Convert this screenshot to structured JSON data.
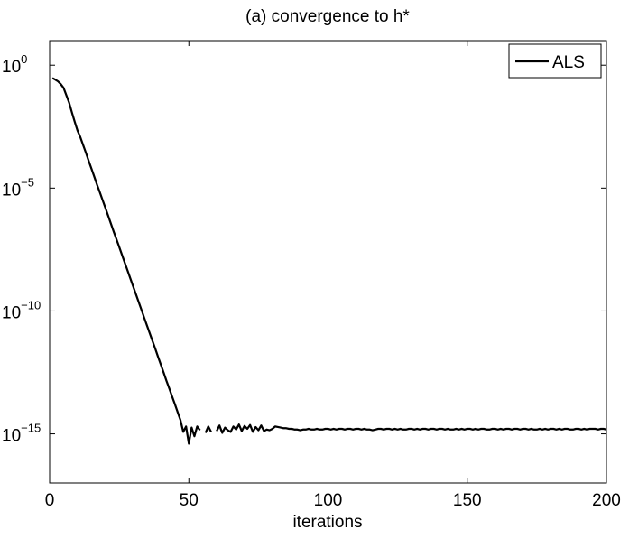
{
  "chart_data": {
    "type": "line",
    "title": "(a) convergence to h*",
    "x_label": "iterations",
    "x": [
      1,
      2,
      3,
      4,
      5,
      6,
      7,
      8,
      9,
      10,
      11,
      12,
      13,
      14,
      15,
      16,
      17,
      18,
      19,
      20,
      21,
      22,
      23,
      24,
      25,
      26,
      27,
      28,
      29,
      30,
      31,
      32,
      33,
      34,
      35,
      36,
      37,
      38,
      39,
      40,
      41,
      42,
      43,
      44,
      45,
      46,
      47,
      48,
      49,
      50,
      51,
      52,
      53,
      54,
      55,
      56,
      57,
      58,
      59,
      60,
      61,
      62,
      63,
      64,
      65,
      66,
      67,
      68,
      69,
      70,
      71,
      72,
      73,
      74,
      75,
      76,
      77,
      78,
      79,
      80,
      81,
      82,
      83,
      84,
      85,
      86,
      87,
      88,
      89,
      90,
      91,
      92,
      93,
      94,
      95,
      96,
      97,
      98,
      99,
      100,
      101,
      102,
      103,
      104,
      105,
      106,
      107,
      108,
      109,
      110,
      111,
      112,
      113,
      114,
      115,
      116,
      117,
      118,
      119,
      120,
      121,
      122,
      123,
      124,
      125,
      126,
      127,
      128,
      129,
      130,
      131,
      132,
      133,
      134,
      135,
      136,
      137,
      138,
      139,
      140,
      141,
      142,
      143,
      144,
      145,
      146,
      147,
      148,
      149,
      150,
      151,
      152,
      153,
      154,
      155,
      156,
      157,
      158,
      159,
      160,
      161,
      162,
      163,
      164,
      165,
      166,
      167,
      168,
      169,
      170,
      171,
      172,
      173,
      174,
      175,
      176,
      177,
      178,
      179,
      180,
      181,
      182,
      183,
      184,
      185,
      186,
      187,
      188,
      189,
      190,
      191,
      192,
      193,
      194,
      195,
      196,
      197,
      198,
      199,
      200
    ],
    "series": [
      {
        "name": "ALS",
        "color": "#000000",
        "values": [
          0.3,
          0.26,
          0.22,
          0.17,
          0.12,
          0.06,
          0.03,
          0.012,
          0.005,
          0.0022,
          0.0012,
          0.00058,
          0.00028,
          0.00013,
          6.3e-05,
          3e-05,
          1.4e-05,
          6.9e-06,
          3.3e-06,
          1.6e-06,
          7.6e-07,
          3.6e-07,
          1.7e-07,
          8.3e-08,
          4e-08,
          1.9e-08,
          9.1e-09,
          4.4e-09,
          2.1e-09,
          1e-09,
          4.8e-10,
          2.3e-10,
          1.1e-10,
          5.2e-11,
          2.5e-11,
          1.2e-11,
          5.8e-12,
          2.8e-12,
          1.3e-12,
          6.3e-13,
          3e-13,
          1.4e-13,
          6.9e-14,
          3.3e-14,
          1.6e-14,
          7.6e-15,
          3.6e-15,
          1.2e-15,
          2e-15,
          4e-16,
          1.8e-15,
          8e-16,
          2e-15,
          1.4e-15,
          null,
          1.1e-15,
          2e-15,
          1.2e-15,
          null,
          1.3e-15,
          2.2e-15,
          1.1e-15,
          1.8e-15,
          1.4e-15,
          1.2e-15,
          2e-15,
          1.5e-15,
          2.4e-15,
          1.3e-15,
          2.1e-15,
          1.6e-15,
          2.3e-15,
          1.2e-15,
          1.9e-15,
          1.4e-15,
          2.2e-15,
          1.3e-15,
          1.5e-15,
          1.4e-15,
          1.6e-15,
          2e-15,
          1.9e-15,
          1.8e-15,
          1.7e-15,
          1.7e-15,
          1.6e-15,
          1.6e-15,
          1.5e-15,
          1.5e-15,
          1.4e-15,
          1.5e-15,
          1.5e-15,
          1.6e-15,
          1.5e-15,
          1.5e-15,
          1.6e-15,
          1.5e-15,
          1.5e-15,
          1.6e-15,
          1.6e-15,
          1.5e-15,
          1.6e-15,
          1.5e-15,
          1.6e-15,
          1.6e-15,
          1.5e-15,
          1.6e-15,
          1.6e-15,
          1.5e-15,
          1.6e-15,
          1.6e-15,
          1.5e-15,
          1.6e-15,
          1.5e-15,
          1.5e-15,
          1.4e-15,
          1.5e-15,
          1.6e-15,
          1.6e-15,
          1.5e-15,
          1.6e-15,
          1.6e-15,
          1.5e-15,
          1.6e-15,
          1.5e-15,
          1.6e-15,
          1.5e-15,
          1.5e-15,
          1.6e-15,
          1.6e-15,
          1.5e-15,
          1.6e-15,
          1.5e-15,
          1.6e-15,
          1.6e-15,
          1.5e-15,
          1.6e-15,
          1.6e-15,
          1.5e-15,
          1.6e-15,
          1.6e-15,
          1.5e-15,
          1.6e-15,
          1.5e-15,
          1.5e-15,
          1.6e-15,
          1.5e-15,
          1.6e-15,
          1.5e-15,
          1.6e-15,
          1.6e-15,
          1.5e-15,
          1.6e-15,
          1.5e-15,
          1.6e-15,
          1.6e-15,
          1.5e-15,
          1.5e-15,
          1.6e-15,
          1.6e-15,
          1.5e-15,
          1.6e-15,
          1.5e-15,
          1.6e-15,
          1.6e-15,
          1.5e-15,
          1.6e-15,
          1.6e-15,
          1.5e-15,
          1.6e-15,
          1.6e-15,
          1.5e-15,
          1.6e-15,
          1.5e-15,
          1.5e-15,
          1.6e-15,
          1.5e-15,
          1.6e-15,
          1.5e-15,
          1.6e-15,
          1.6e-15,
          1.5e-15,
          1.6e-15,
          1.5e-15,
          1.6e-15,
          1.6e-15,
          1.5e-15,
          1.5e-15,
          1.6e-15,
          1.6e-15,
          1.5e-15,
          1.6e-15,
          1.5e-15,
          1.6e-15,
          1.6e-15,
          1.6e-15,
          1.5e-15,
          1.6e-15,
          1.6e-15,
          1.5e-15
        ]
      }
    ],
    "xlim": [
      0,
      200
    ],
    "xticks": [
      0,
      50,
      100,
      150,
      200
    ],
    "ylim": [
      1e-17,
      10
    ],
    "ylog": true,
    "yticks": [
      {
        "value": 1,
        "label": "10",
        "exponent": "0"
      },
      {
        "value": 1e-05,
        "label": "10",
        "exponent": "−5"
      },
      {
        "value": 1e-10,
        "label": "10",
        "exponent": "−10"
      },
      {
        "value": 1e-15,
        "label": "10",
        "exponent": "−15"
      }
    ],
    "grid": false,
    "legend": "upper right"
  }
}
